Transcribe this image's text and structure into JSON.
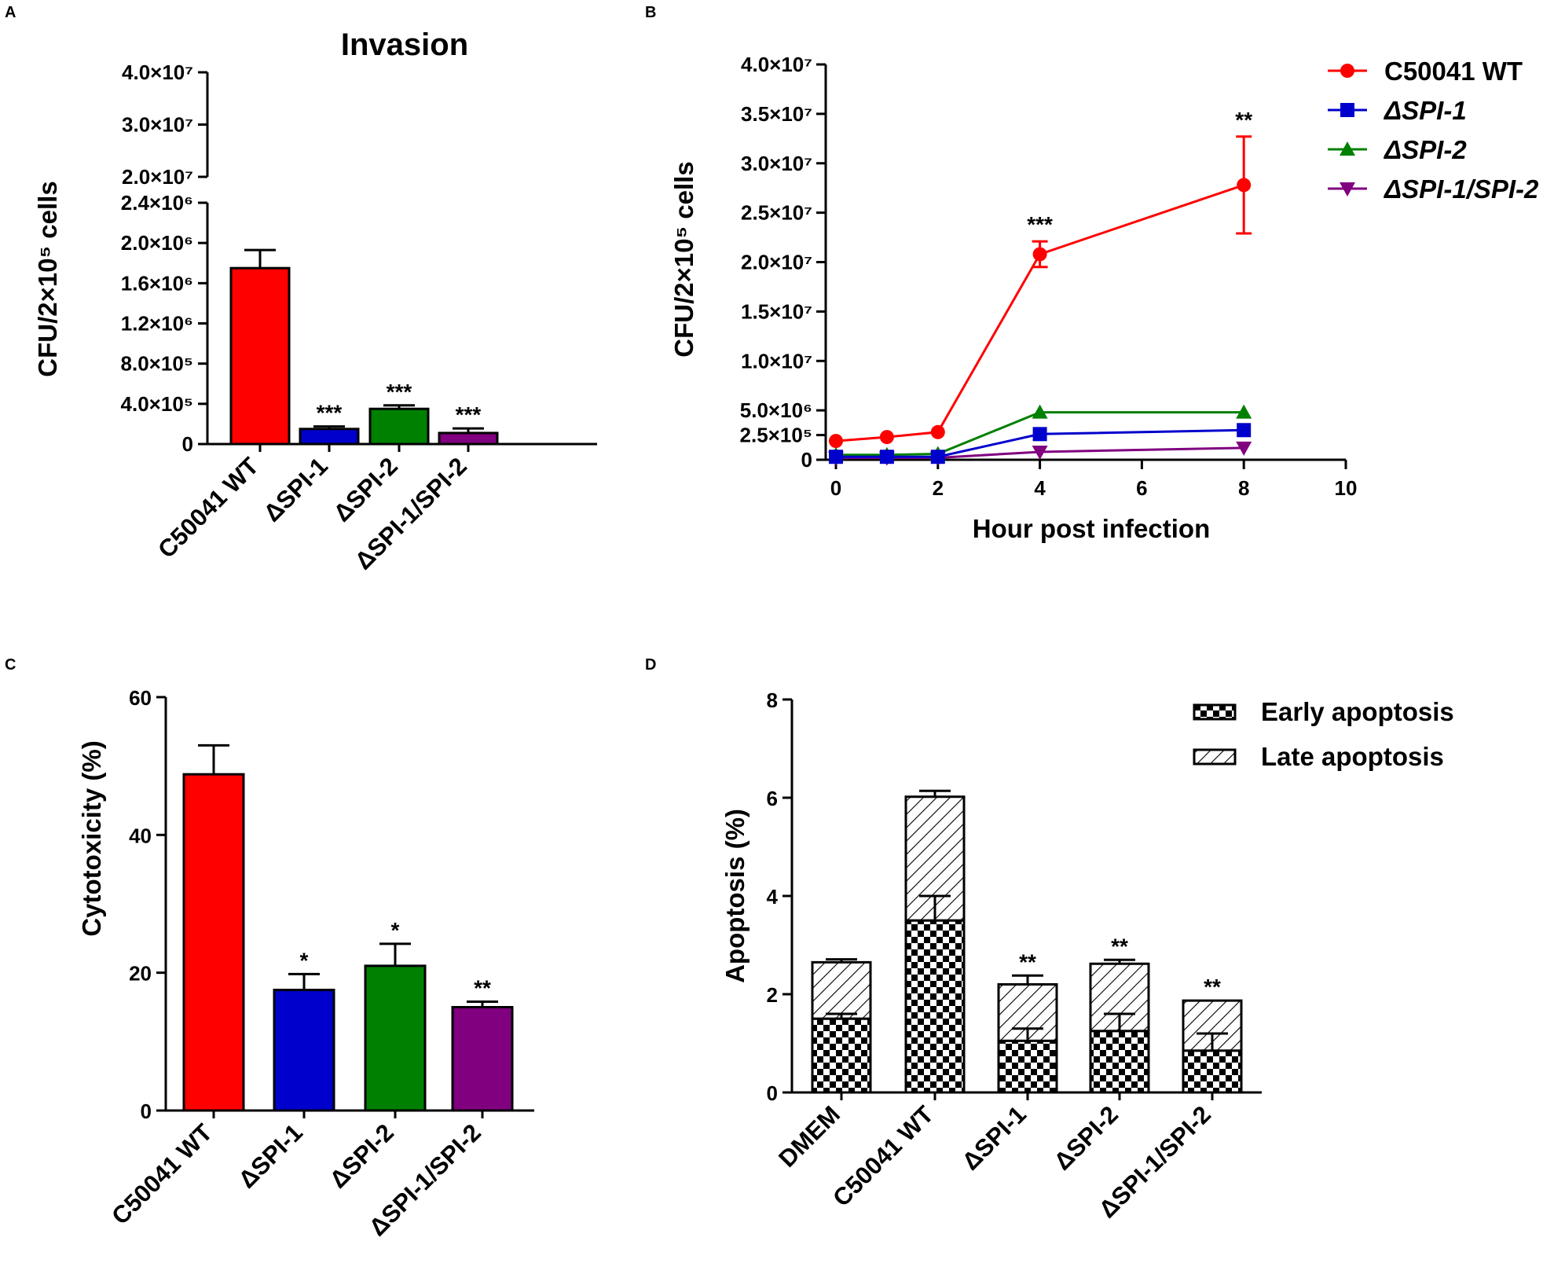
{
  "chart_data": [
    {
      "panel": "A",
      "type": "bar",
      "title": "Invasion",
      "xlabel": "",
      "ylabel": "CFU/2×10⁵ cells",
      "categories": [
        "C50041 WT",
        "ΔSPI-1",
        "ΔSPI-2",
        "ΔSPI-1/SPI-2"
      ],
      "values": [
        1750000,
        150000,
        350000,
        110000
      ],
      "errors": [
        180000,
        25000,
        35000,
        45000
      ],
      "colors": [
        "#ff0000",
        "#0000cc",
        "#008000",
        "#800080"
      ],
      "significance": [
        "",
        "***",
        "***",
        "***"
      ],
      "y_axis_break": true,
      "ylim_lower": [
        0,
        2400000
      ],
      "ylim_upper": [
        20000000,
        40000000
      ],
      "yticks_lower": [
        "0",
        "4.0×10⁵",
        "8.0×10⁵",
        "1.2×10⁶",
        "1.6×10⁶",
        "2.0×10⁶",
        "2.4×10⁶"
      ],
      "yticks_upper": [
        "2.0×10⁷",
        "3.0×10⁷",
        "4.0×10⁷"
      ]
    },
    {
      "panel": "B",
      "type": "line",
      "xlabel": "Hour post infection",
      "ylabel": "CFU/2×10⁵ cells",
      "x": [
        0,
        1,
        2,
        4,
        8
      ],
      "xlim": [
        0,
        10
      ],
      "xticks": [
        "0",
        "2",
        "4",
        "6",
        "8",
        "10"
      ],
      "ylim": [
        0,
        40000000
      ],
      "yticks": [
        "0",
        "2.5×10⁵",
        "5.0×10⁶",
        "1.0×10⁷",
        "1.5×10⁷",
        "2.0×10⁷",
        "2.5×10⁷",
        "3.0×10⁷",
        "3.5×10⁷",
        "4.0×10⁷"
      ],
      "series": [
        {
          "name": "C50041 WT",
          "color": "#ff0000",
          "marker": "circle",
          "values": [
            1900000,
            2300000,
            2800000,
            20800000,
            27800000
          ],
          "errors": [
            0,
            0,
            0,
            1300000,
            4900000
          ]
        },
        {
          "name": "ΔSPI-1",
          "color": "#0000cc",
          "marker": "square",
          "values": [
            300000,
            300000,
            300000,
            2600000,
            3000000
          ],
          "errors": [
            0,
            0,
            0,
            0,
            0
          ]
        },
        {
          "name": "ΔSPI-2",
          "color": "#008000",
          "marker": "triangle",
          "values": [
            500000,
            500000,
            600000,
            4800000,
            4800000
          ],
          "errors": [
            0,
            0,
            0,
            0,
            0
          ]
        },
        {
          "name": "ΔSPI-1/SPI-2",
          "color": "#800080",
          "marker": "triangle-down",
          "values": [
            200000,
            200000,
            200000,
            800000,
            1200000
          ],
          "errors": [
            0,
            0,
            0,
            0,
            0
          ]
        }
      ],
      "significance": [
        {
          "x": 4,
          "label": "***"
        },
        {
          "x": 8,
          "label": "**"
        }
      ],
      "legend_position": "top-right"
    },
    {
      "panel": "C",
      "type": "bar",
      "xlabel": "",
      "ylabel": "Cytotoxicity (%)",
      "categories": [
        "C50041 WT",
        "ΔSPI-1",
        "ΔSPI-2",
        "ΔSPI-1/SPI-2"
      ],
      "values": [
        48.8,
        17.5,
        21.0,
        15.0
      ],
      "errors": [
        4.2,
        2.3,
        3.2,
        0.8
      ],
      "colors": [
        "#ff0000",
        "#0000cc",
        "#008000",
        "#800080"
      ],
      "significance": [
        "",
        "*",
        "*",
        "**"
      ],
      "ylim": [
        0,
        60
      ],
      "yticks": [
        "0",
        "20",
        "40",
        "60"
      ]
    },
    {
      "panel": "D",
      "type": "bar",
      "stacked": true,
      "xlabel": "",
      "ylabel": "Apoptosis (%)",
      "categories": [
        "DMEM",
        "C50041 WT",
        "ΔSPI-1",
        "ΔSPI-2",
        "ΔSPI-1/SPI-2"
      ],
      "series": [
        {
          "name": "Early apoptosis",
          "pattern": "checker",
          "values": [
            1.5,
            3.5,
            1.05,
            1.25,
            0.85
          ],
          "errors": [
            0.1,
            0.5,
            0.25,
            0.35,
            0.35
          ]
        },
        {
          "name": "Late apoptosis",
          "pattern": "hatch",
          "values": [
            1.15,
            2.52,
            1.15,
            1.37,
            1.02
          ],
          "errors": [
            0.06,
            0.12,
            0.18,
            0.08,
            0.0
          ]
        }
      ],
      "significance": [
        "",
        "",
        "**",
        "**",
        "**"
      ],
      "ylim": [
        0,
        8
      ],
      "yticks": [
        "0",
        "2",
        "4",
        "6",
        "8"
      ],
      "legend_position": "top-right"
    }
  ]
}
